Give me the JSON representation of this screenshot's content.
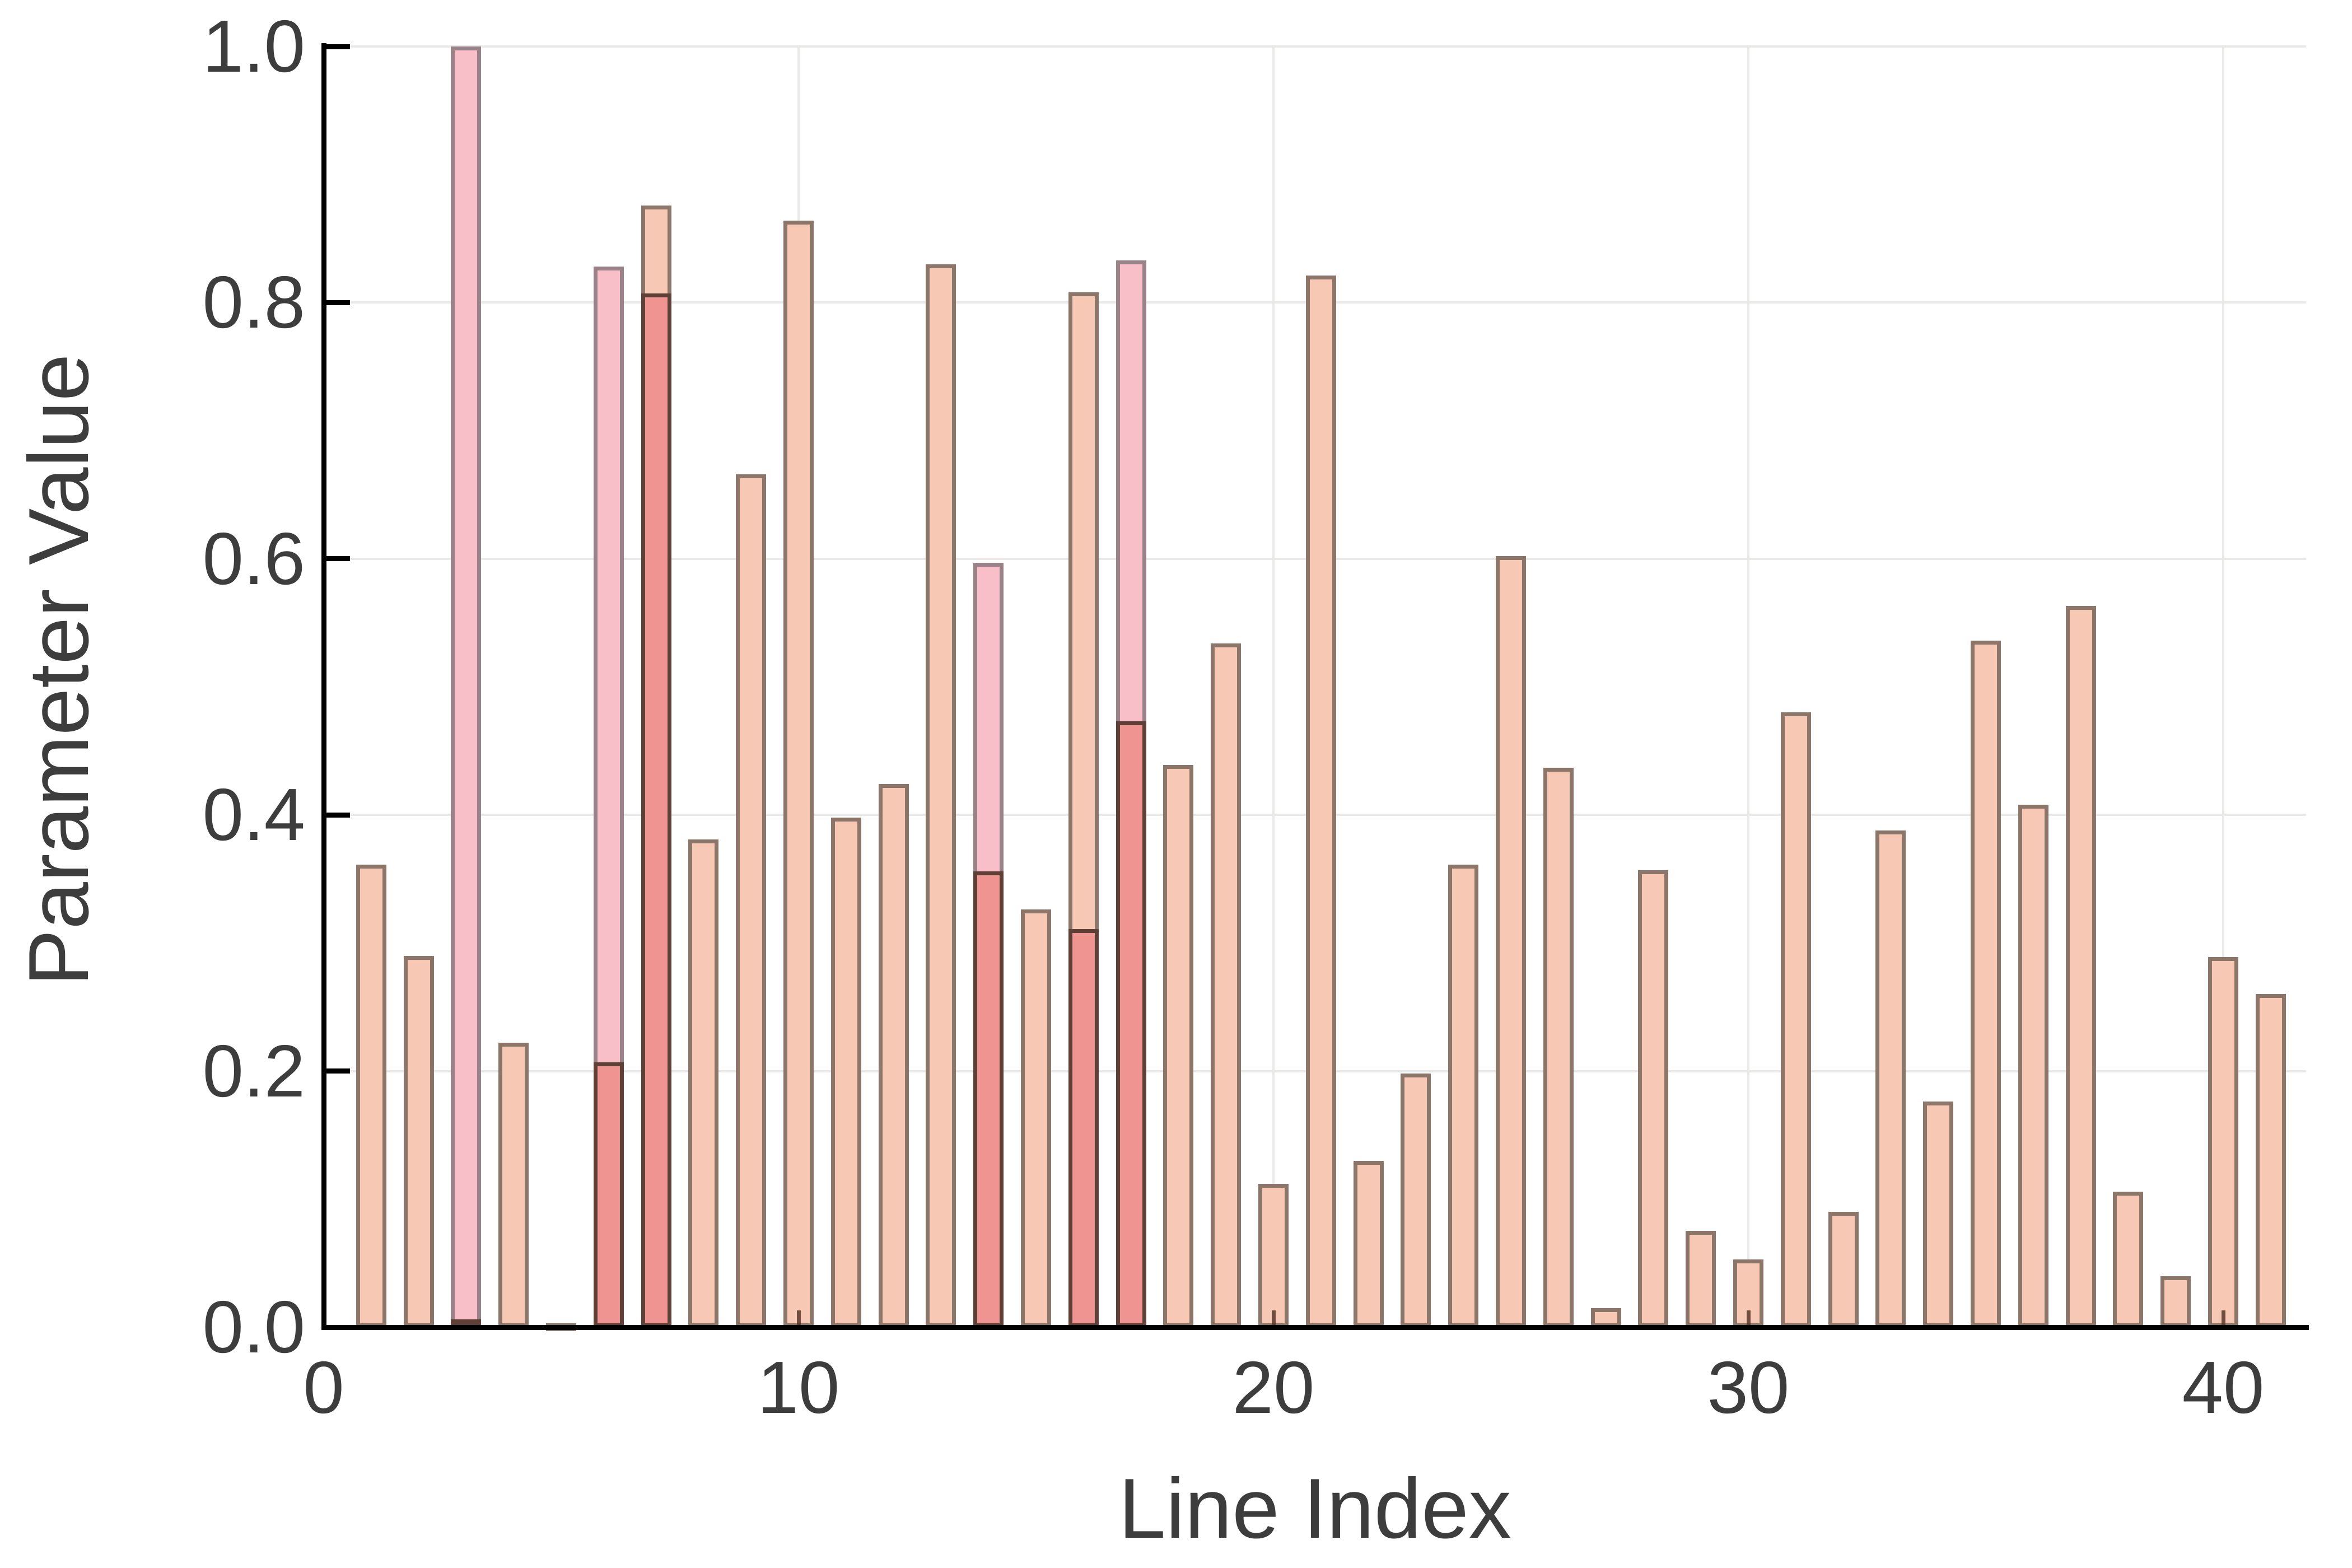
{
  "figure": {
    "title": "",
    "xlabel": "Line Index",
    "ylabel": "Parameter Value"
  },
  "chart_data": {
    "type": "bar",
    "title": "",
    "xlabel": "Line Index",
    "ylabel": "Parameter Value",
    "xlim": [
      0,
      41.7
    ],
    "ylim": [
      0.0,
      1.0
    ],
    "x_ticks": [
      0,
      10,
      20,
      30,
      40
    ],
    "x_tick_labels": [
      "0",
      "10",
      "20",
      "30",
      "40"
    ],
    "y_ticks": [
      0.0,
      0.2,
      0.4,
      0.6,
      0.8,
      1.0
    ],
    "y_tick_labels": [
      "0.0",
      "0.2",
      "0.4",
      "0.6",
      "0.8",
      "1.0"
    ],
    "grid": true,
    "legend": false,
    "bar_unit_width": 0.64,
    "series": [
      {
        "name": "salmon-bars",
        "fill_color": "#f7c9b5",
        "edge_color": "#70625780",
        "points": [
          [
            1,
            0.361
          ],
          [
            2,
            0.29
          ],
          [
            4,
            0.222
          ],
          [
            5,
            0.003
          ],
          [
            7,
            0.876
          ],
          [
            8,
            0.381
          ],
          [
            9,
            0.666
          ],
          [
            10,
            0.864
          ],
          [
            11,
            0.398
          ],
          [
            12,
            0.424
          ],
          [
            13,
            0.83
          ],
          [
            15,
            0.326
          ],
          [
            16,
            0.808
          ],
          [
            18,
            0.439
          ],
          [
            19,
            0.534
          ],
          [
            20,
            0.112
          ],
          [
            21,
            0.821
          ],
          [
            22,
            0.13
          ],
          [
            23,
            0.198
          ],
          [
            24,
            0.361
          ],
          [
            25,
            0.602
          ],
          [
            26,
            0.437
          ],
          [
            27,
            0.015
          ],
          [
            28,
            0.357
          ],
          [
            29,
            0.075
          ],
          [
            30,
            0.053
          ],
          [
            31,
            0.48
          ],
          [
            32,
            0.09
          ],
          [
            33,
            0.388
          ],
          [
            34,
            0.176
          ],
          [
            35,
            0.536
          ],
          [
            36,
            0.408
          ],
          [
            37,
            0.563
          ],
          [
            38,
            0.106
          ],
          [
            39,
            0.04
          ],
          [
            40,
            0.289
          ],
          [
            41,
            0.26
          ]
        ]
      },
      {
        "name": "pink-bars",
        "fill_color": "#f9bfc9",
        "edge_color": "#82747880",
        "points": [
          [
            3,
            1.0
          ],
          [
            6,
            0.828
          ],
          [
            14,
            0.597
          ],
          [
            17,
            0.833
          ]
        ]
      },
      {
        "name": "red-front-bars",
        "fill_color": "#f09492",
        "edge_color": "#523830eb",
        "points": [
          [
            3,
            0.006
          ],
          [
            6,
            0.207
          ],
          [
            7,
            0.807
          ],
          [
            14,
            0.356
          ],
          [
            16,
            0.311
          ],
          [
            17,
            0.473
          ]
        ]
      }
    ]
  }
}
